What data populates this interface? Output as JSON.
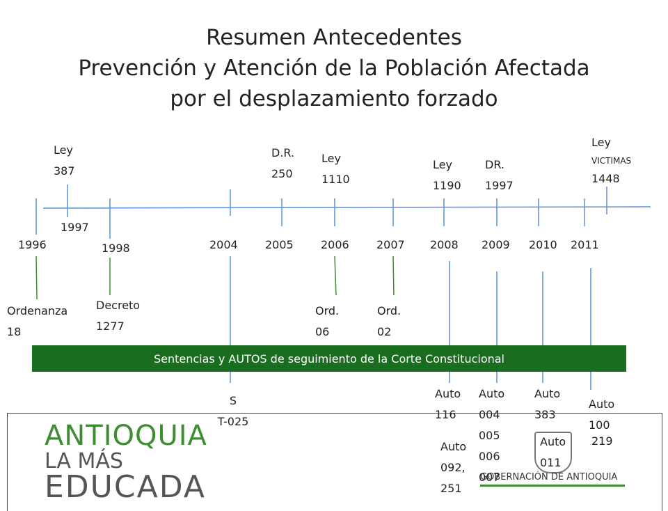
{
  "title": {
    "line1": "Resumen Antecedentes",
    "line2": "Prevención y Atención de la Población Afectada",
    "line3": "por el desplazamiento forzado"
  },
  "years": [
    "1996",
    "1997",
    "1998",
    "2004",
    "2005",
    "2006",
    "2007",
    "2008",
    "2009",
    "2010",
    "2011"
  ],
  "above": {
    "ley387": [
      "Ley",
      "387"
    ],
    "dr250": [
      "D.R.",
      "250"
    ],
    "ley1110": [
      "Ley",
      "1110"
    ],
    "ley1190": [
      "Ley",
      "1190"
    ],
    "dr1997": [
      "DR.",
      "1997"
    ],
    "ley1448": [
      "Ley",
      "VICTIMAS",
      "1448"
    ]
  },
  "below": {
    "ordenanza18": [
      "Ordenanza",
      "18"
    ],
    "decreto1277": [
      "Decreto",
      "1277"
    ],
    "ord06": [
      "Ord.",
      "06"
    ],
    "ord02": [
      "Ord.",
      "02"
    ]
  },
  "banner": "Sentencias y AUTOS de seguimiento de la Corte Constitucional",
  "autos": {
    "st025": [
      "S",
      "T-025"
    ],
    "auto116": [
      "Auto",
      "116"
    ],
    "auto092": [
      "Auto",
      "092,",
      "251"
    ],
    "auto004": [
      "Auto",
      "004",
      "005",
      "006",
      "007"
    ],
    "auto383": [
      "Auto",
      "383"
    ],
    "auto011": [
      "Auto",
      "011"
    ],
    "auto100": [
      "Auto",
      "100"
    ],
    "auto219": "219"
  },
  "logo": {
    "line1": "ANTIOQUIA",
    "line2": "LA MÁS",
    "line3": "EDUCADA",
    "gobernacion": "GOBERNACIÓN DE ANTIOQUIA"
  },
  "colors": {
    "timeline": "#5b8fd9",
    "banner": "#1a6d1e",
    "logo_green": "#3f8d32"
  }
}
